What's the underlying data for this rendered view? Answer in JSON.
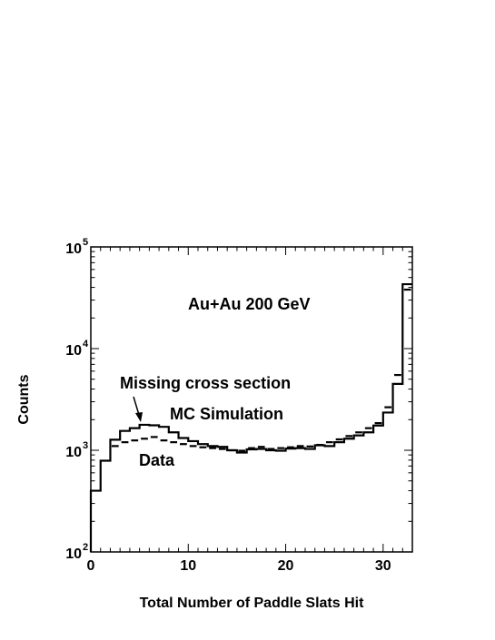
{
  "chart_data": {
    "type": "histogram",
    "xlabel": "Total Number of Paddle Slats Hit",
    "ylabel": "Counts",
    "xlim": [
      0,
      33
    ],
    "ylim": [
      100,
      100000
    ],
    "yscale": "log",
    "x_ticks": [
      "0",
      "10",
      "20",
      "30"
    ],
    "y_ticks": [
      {
        "value": 100,
        "base": "10",
        "exp": "2"
      },
      {
        "value": 1000,
        "base": "10",
        "exp": "3"
      },
      {
        "value": 10000,
        "base": "10",
        "exp": "4"
      },
      {
        "value": 100000,
        "base": "10",
        "exp": "5"
      }
    ],
    "annotations": {
      "system": "Au+Au 200 GeV",
      "missing": "Missing cross section",
      "mc": "MC Simulation",
      "data": "Data"
    },
    "bin_edges": [
      0,
      1,
      2,
      3,
      4,
      5,
      6,
      7,
      8,
      9,
      10,
      11,
      12,
      13,
      14,
      15,
      16,
      17,
      18,
      19,
      20,
      21,
      22,
      23,
      24,
      25,
      26,
      27,
      28,
      29,
      30,
      31,
      32,
      33
    ],
    "series": [
      {
        "name": "MC Simulation",
        "style": "solid",
        "values": [
          400,
          790,
          1270,
          1550,
          1650,
          1780,
          1760,
          1700,
          1500,
          1320,
          1230,
          1150,
          1100,
          1080,
          1000,
          950,
          1020,
          1030,
          1000,
          990,
          1040,
          1050,
          1030,
          1120,
          1100,
          1200,
          1300,
          1400,
          1500,
          1750,
          2350,
          4500,
          43000
        ]
      },
      {
        "name": "Data",
        "style": "dashed",
        "values": [
          null,
          null,
          1100,
          1200,
          1250,
          1300,
          1350,
          1250,
          1200,
          1150,
          1100,
          1070,
          1050,
          1030,
          1000,
          990,
          1050,
          1080,
          1030,
          1050,
          1070,
          1100,
          1090,
          1130,
          1200,
          1280,
          1380,
          1500,
          1650,
          1850,
          2650,
          5500,
          38000
        ]
      }
    ]
  }
}
